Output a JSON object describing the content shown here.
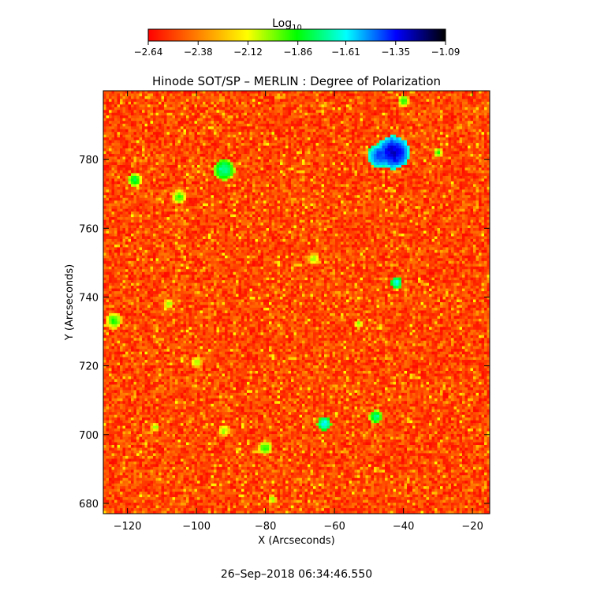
{
  "chart_data": {
    "type": "heatmap",
    "title": "Hinode SOT/SP – MERLIN : Degree of Polarization",
    "xlabel": "X (Arcseconds)",
    "ylabel": "Y (Arcseconds)",
    "xlim": [
      -127,
      -15
    ],
    "ylim": [
      677,
      800
    ],
    "x_ticks": [
      -120,
      -100,
      -80,
      -60,
      -40,
      -20
    ],
    "y_ticks": [
      680,
      700,
      720,
      740,
      760,
      780
    ],
    "x_tick_labels": [
      "−120",
      "−100",
      "−80",
      "−60",
      "−40",
      "−20"
    ],
    "y_tick_labels": [
      "680",
      "700",
      "720",
      "740",
      "760",
      "780"
    ],
    "colorbar": {
      "label_base": "Log",
      "label_sub": "10",
      "range": [
        -2.64,
        -1.09
      ],
      "ticks": [
        -2.64,
        -2.38,
        -2.12,
        -1.86,
        -1.61,
        -1.35,
        -1.09
      ],
      "tick_labels": [
        "−2.64",
        "−2.38",
        "−2.12",
        "−1.86",
        "−1.61",
        "−1.35",
        "−1.09"
      ],
      "colors": [
        "#ff0000",
        "#ff8000",
        "#ffff00",
        "#00ff00",
        "#00ffff",
        "#0000ff",
        "#000000"
      ]
    },
    "features": [
      {
        "x": -43,
        "y": 782,
        "value": -1.3,
        "size": 2.8
      },
      {
        "x": -47,
        "y": 781,
        "value": -1.4,
        "size": 2.0
      },
      {
        "x": -92,
        "y": 777,
        "value": -1.7,
        "size": 1.8
      },
      {
        "x": -118,
        "y": 774,
        "value": -1.8,
        "size": 1.2
      },
      {
        "x": -105,
        "y": 769,
        "value": -1.9,
        "size": 1.2
      },
      {
        "x": -42,
        "y": 744,
        "value": -1.6,
        "size": 1.0
      },
      {
        "x": -63,
        "y": 703,
        "value": -1.6,
        "size": 1.2
      },
      {
        "x": -48,
        "y": 705,
        "value": -1.7,
        "size": 1.1
      },
      {
        "x": -40,
        "y": 797,
        "value": -1.9,
        "size": 1.0
      },
      {
        "x": -124,
        "y": 733,
        "value": -1.9,
        "size": 1.4
      },
      {
        "x": -80,
        "y": 696,
        "value": -1.9,
        "size": 1.2
      },
      {
        "x": -100,
        "y": 721,
        "value": -2.0,
        "size": 1.0
      },
      {
        "x": -66,
        "y": 751,
        "value": -2.0,
        "size": 1.0
      },
      {
        "x": -108,
        "y": 738,
        "value": -2.0,
        "size": 0.9
      },
      {
        "x": -53,
        "y": 732,
        "value": -2.0,
        "size": 0.8
      },
      {
        "x": -30,
        "y": 782,
        "value": -1.9,
        "size": 0.8
      },
      {
        "x": -92,
        "y": 701,
        "value": -2.0,
        "size": 1.0
      },
      {
        "x": -112,
        "y": 702,
        "value": -2.0,
        "size": 0.8
      },
      {
        "x": -78,
        "y": 681,
        "value": -2.0,
        "size": 0.8
      }
    ],
    "grid": false,
    "footer": "26–Sep–2018 06:34:46.550"
  }
}
